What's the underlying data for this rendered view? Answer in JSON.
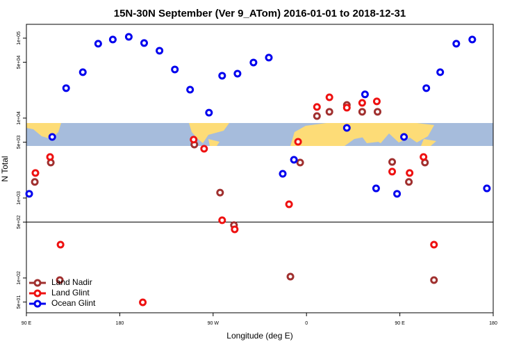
{
  "chart_data": {
    "type": "scatter",
    "title": "15N-30N September (Ver 9_ATom)   2016-01-01 to 2018-12-31",
    "x_label": "Longitude (deg E)",
    "y_label": "N Total",
    "xlim": [
      90,
      540
    ],
    "xticks": [
      {
        "value": 90,
        "label": "90 E"
      },
      180,
      {
        "value": 270,
        "label": "90 W"
      },
      {
        "value": 360,
        "label": "0"
      },
      {
        "value": 450,
        "label": "90 E"
      },
      {
        "value": 540,
        "label": "180"
      }
    ],
    "ylim": [
      36.7,
      149000
    ],
    "log_y": true,
    "yticks": [
      {
        "value": 50,
        "label": "5e+01"
      },
      {
        "value": 100,
        "label": "1e+02"
      },
      {
        "value": 500,
        "label": "5e+02"
      },
      {
        "value": 1000,
        "label": "1e+03"
      },
      {
        "value": 5000,
        "label": "5e+03"
      },
      {
        "value": 10000,
        "label": "1e+04"
      },
      {
        "value": 50000,
        "label": "5e+04"
      },
      {
        "value": 100000,
        "label": "1e+05"
      }
    ],
    "reference_line": 500,
    "legend": "lower left",
    "series": [
      {
        "name": "Land Nadir",
        "color": "#a0302f",
        "x": [
          98.1,
          113.5,
          122.2,
          251.9,
          276.7,
          290.1,
          344.5,
          353.9,
          370.1,
          382.1,
          398.9,
          413.7,
          428.5,
          442.6,
          458.7,
          474.2,
          482.9
        ],
        "values": [
          1590,
          2780,
          94,
          4670,
          1170,
          458,
          104,
          2780,
          10600,
          12000,
          14600,
          12000,
          12000,
          2830,
          1590,
          2780,
          94
        ]
      },
      {
        "name": "Land Glint",
        "color": "#ee1111",
        "x": [
          98.7,
          112.8,
          122.9,
          202.2,
          251.2,
          261.3,
          278.7,
          290.8,
          343.2,
          351.9,
          370.1,
          382.1,
          398.9,
          413.7,
          427.8,
          442.6,
          459.4,
          472.8,
          482.9
        ],
        "values": [
          2060,
          3260,
          261,
          49.6,
          5380,
          4140,
          527,
          406,
          835,
          5060,
          13800,
          18200,
          13500,
          15500,
          16200,
          2140,
          2060,
          3260,
          261
        ]
      },
      {
        "name": "Ocean Glint",
        "color": "#0000ee",
        "x": [
          92.7,
          114.9,
          128.3,
          144.4,
          159.2,
          173.3,
          188.7,
          203.5,
          218.3,
          233.1,
          247.8,
          266.0,
          278.7,
          293.5,
          308.9,
          323.7,
          337.1,
          347.9,
          398.9,
          416.4,
          427.1,
          447.3,
          454.0,
          475.5,
          488.9,
          504.4,
          519.8,
          533.9
        ],
        "values": [
          1130,
          5820,
          23700,
          37500,
          85200,
          96100,
          104000,
          86900,
          69700,
          40600,
          22700,
          11700,
          33900,
          36000,
          49600,
          57100,
          2010,
          3010,
          7550,
          19800,
          1320,
          1130,
          5820,
          23700,
          37500,
          85200,
          96100,
          1320
        ]
      }
    ]
  }
}
